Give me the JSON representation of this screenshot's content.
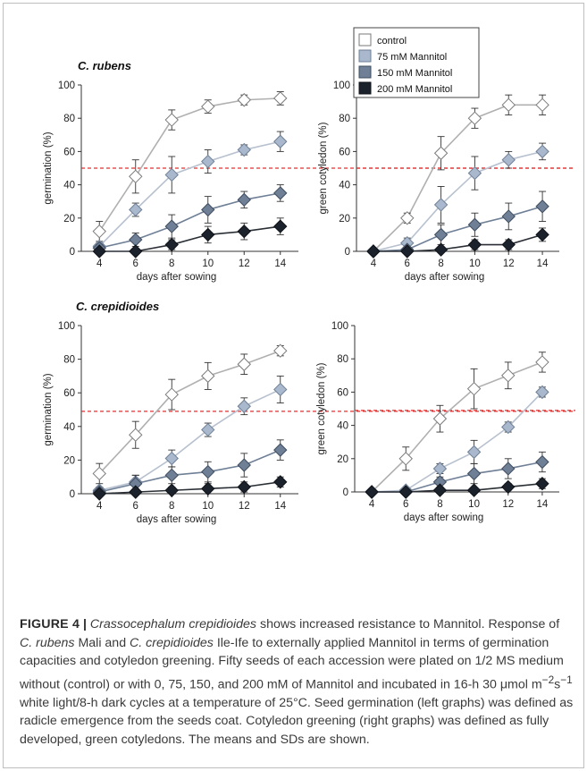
{
  "figure": {
    "caption": {
      "label": "FIGURE 4",
      "separator": "|",
      "title_italic": "Crassocephalum crepidioides",
      "title_rest": " shows increased resistance to Mannitol.",
      "body_1": " Response of ",
      "italic_1": "C. rubens",
      "body_2": " Mali and ",
      "italic_2": "C. crepidioides",
      "body_3": " Ile-Ife to externally applied Mannitol in terms of germination capacities and cotyledon greening. Fifty seeds of each accession were plated on 1/2 MS medium without (control) or with 0, 75, 150, and 200 mM of Mannitol and incubated in 16-h 30 μmol m",
      "sup_1": "−2",
      "body_4": "s",
      "sup_2": "−1",
      "body_5": " white light/8-h dark cycles at a temperature of 25°C. Seed germination (left graphs) was defined as radicle emergence from the seeds coat. Cotyledon greening (right graphs) was defined as fully developed, green cotyledons. The means and SDs are shown."
    }
  },
  "legend": {
    "placement": "top-center",
    "entries": [
      "control",
      "75 mM Mannitol",
      "150 mM Mannitol",
      "200 mM Mannitol"
    ]
  },
  "colors": {
    "control": "#ffffff",
    "m75": "#a9b8cc",
    "m150": "#6e7f96",
    "m200": "#1c222b",
    "line_control": "#b0b0b0",
    "line_m75": "#b7c1cf",
    "line_m150": "#6e7f96",
    "line_m200": "#2a2f36",
    "threshold": "#e03030"
  },
  "chart_data": [
    {
      "type": "line",
      "title": "C. rubens",
      "xlabel": "days after sowing",
      "ylabel": "germination (%)",
      "x": [
        4,
        6,
        8,
        10,
        12,
        14
      ],
      "ylim": [
        0,
        100
      ],
      "yticks": [
        0,
        20,
        40,
        60,
        80,
        100
      ],
      "threshold": 50,
      "series": [
        {
          "name": "control",
          "values": [
            12,
            45,
            79,
            87,
            91,
            92
          ],
          "err": [
            6,
            10,
            6,
            4,
            3,
            4
          ]
        },
        {
          "name": "75 mM Mannitol",
          "values": [
            3,
            25,
            46,
            54,
            61,
            66
          ],
          "err": [
            2,
            4,
            11,
            7,
            3,
            6
          ]
        },
        {
          "name": "150 mM Mannitol",
          "values": [
            2,
            7,
            15,
            25,
            31,
            35
          ],
          "err": [
            2,
            4,
            7,
            8,
            5,
            5
          ]
        },
        {
          "name": "200 mM Mannitol",
          "values": [
            0,
            0,
            4,
            10,
            12,
            15
          ],
          "err": [
            0,
            0,
            3,
            5,
            5,
            5
          ]
        }
      ]
    },
    {
      "type": "line",
      "title": "",
      "xlabel": "days after sowing",
      "ylabel": "green cotyledon (%)",
      "x": [
        4,
        6,
        8,
        10,
        12,
        14
      ],
      "ylim": [
        0,
        100
      ],
      "yticks": [
        0,
        20,
        40,
        60,
        80,
        100
      ],
      "threshold": 50,
      "series": [
        {
          "name": "control",
          "values": [
            0,
            20,
            59,
            80,
            88,
            88
          ],
          "err": [
            0,
            3,
            10,
            6,
            6,
            6
          ]
        },
        {
          "name": "75 mM Mannitol",
          "values": [
            0,
            5,
            28,
            47,
            55,
            60
          ],
          "err": [
            0,
            3,
            11,
            10,
            5,
            5
          ]
        },
        {
          "name": "150 mM Mannitol",
          "values": [
            0,
            1,
            10,
            16,
            21,
            27
          ],
          "err": [
            0,
            1,
            6,
            7,
            8,
            9
          ]
        },
        {
          "name": "200 mM Mannitol",
          "values": [
            0,
            0,
            1,
            4,
            4,
            10
          ],
          "err": [
            0,
            0,
            1,
            3,
            3,
            4
          ]
        }
      ]
    },
    {
      "type": "line",
      "title": "C. crepidioides",
      "xlabel": "days after sowing",
      "ylabel": "germination (%)",
      "x": [
        4,
        6,
        8,
        10,
        12,
        14
      ],
      "ylim": [
        0,
        100
      ],
      "yticks": [
        0,
        20,
        40,
        60,
        80,
        100
      ],
      "threshold": 49,
      "series": [
        {
          "name": "control",
          "values": [
            12,
            35,
            59,
            70,
            77,
            85
          ],
          "err": [
            6,
            8,
            9,
            8,
            6,
            3
          ]
        },
        {
          "name": "75 mM Mannitol",
          "values": [
            2,
            7,
            21,
            38,
            52,
            62
          ],
          "err": [
            2,
            4,
            5,
            4,
            5,
            8
          ]
        },
        {
          "name": "150 mM Mannitol",
          "values": [
            1,
            6,
            11,
            13,
            17,
            26
          ],
          "err": [
            1,
            5,
            5,
            6,
            7,
            6
          ]
        },
        {
          "name": "200 mM Mannitol",
          "values": [
            0,
            1,
            2,
            3,
            4,
            7
          ],
          "err": [
            0,
            1,
            2,
            3,
            3,
            3
          ]
        }
      ]
    },
    {
      "type": "line",
      "title": "",
      "xlabel": "days after sowing",
      "ylabel": "green cotyledon (%)",
      "x": [
        4,
        6,
        8,
        10,
        12,
        14
      ],
      "ylim": [
        0,
        100
      ],
      "yticks": [
        0,
        20,
        40,
        60,
        80,
        100
      ],
      "threshold": 49,
      "series": [
        {
          "name": "control",
          "values": [
            0,
            20,
            44,
            62,
            70,
            78
          ],
          "err": [
            0,
            7,
            8,
            12,
            8,
            6
          ]
        },
        {
          "name": "75 mM Mannitol",
          "values": [
            0,
            1,
            14,
            24,
            39,
            60
          ],
          "err": [
            0,
            1,
            3,
            7,
            3,
            3
          ]
        },
        {
          "name": "150 mM Mannitol",
          "values": [
            0,
            0,
            6,
            11,
            14,
            18
          ],
          "err": [
            0,
            0,
            3,
            6,
            6,
            6
          ]
        },
        {
          "name": "200 mM Mannitol",
          "values": [
            0,
            0,
            1,
            1,
            3,
            5
          ],
          "err": [
            0,
            0,
            1,
            1,
            2,
            3
          ]
        }
      ]
    }
  ]
}
